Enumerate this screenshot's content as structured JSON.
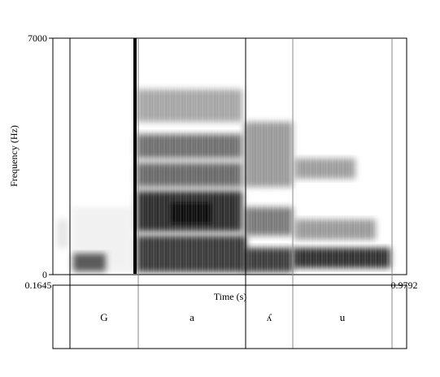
{
  "spectrogram": {
    "y_axis": {
      "label": "Frequency (Hz)",
      "max_label": "7000",
      "min_label": "0",
      "range": [
        0,
        7000
      ]
    },
    "x_axis": {
      "label": "Time (s)",
      "start_label": "0.1645",
      "end_label": "0.9792",
      "range": [
        0.1645,
        0.9792
      ]
    }
  },
  "segments": [
    {
      "label": "G"
    },
    {
      "label": "a"
    },
    {
      "label": "ʎ"
    },
    {
      "label": "u"
    }
  ]
}
